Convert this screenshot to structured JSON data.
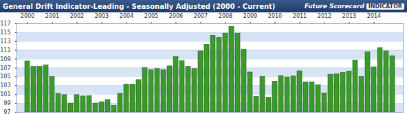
{
  "chart_data": {
    "type": "bar",
    "title": "General Drift Indicator-Leading - Seasonally Adjusted (2000 - Current)",
    "annotations": [
      "Future Scorecard",
      "INDICATOR"
    ],
    "categories": [
      "2000",
      null,
      null,
      null,
      "2001",
      null,
      null,
      null,
      "2002",
      null,
      null,
      null,
      "2003",
      null,
      null,
      null,
      "2004",
      null,
      null,
      null,
      "2005",
      null,
      null,
      null,
      "2006",
      null,
      null,
      null,
      "2007",
      null,
      null,
      null,
      "2008",
      null,
      null,
      null,
      "2009",
      null,
      null,
      null,
      "2010",
      null,
      null,
      null,
      "2011",
      null,
      null,
      null,
      "2012",
      null,
      null,
      null,
      "2013",
      null,
      null,
      null,
      "2014",
      null,
      null,
      null
    ],
    "values": [
      108.5,
      107.3,
      107.3,
      107.6,
      105,
      101.2,
      100.9,
      99,
      100.9,
      100.6,
      100.7,
      99,
      99.3,
      99.8,
      98.5,
      101.2,
      103.3,
      103.3,
      104.3,
      107,
      106.5,
      106.8,
      106.5,
      107.4,
      109.5,
      108.6,
      107.3,
      106.8,
      110.8,
      112.3,
      114.3,
      113.8,
      114.8,
      116.3,
      114.8,
      111.2,
      106,
      100.5,
      105,
      100.3,
      103.9,
      105.2,
      104.9,
      105.1,
      106.3,
      103.8,
      103.8,
      103.1,
      101.3,
      105.5,
      105.6,
      105.9,
      106.2,
      108.7,
      105,
      110.6,
      107.2,
      111.5,
      110.8,
      109.7
    ],
    "color": "#3c9a2c",
    "ylim": [
      97,
      117
    ],
    "yticks": [
      97,
      99,
      101,
      103,
      105,
      107,
      109,
      111,
      113,
      115,
      117
    ],
    "grid": true
  }
}
